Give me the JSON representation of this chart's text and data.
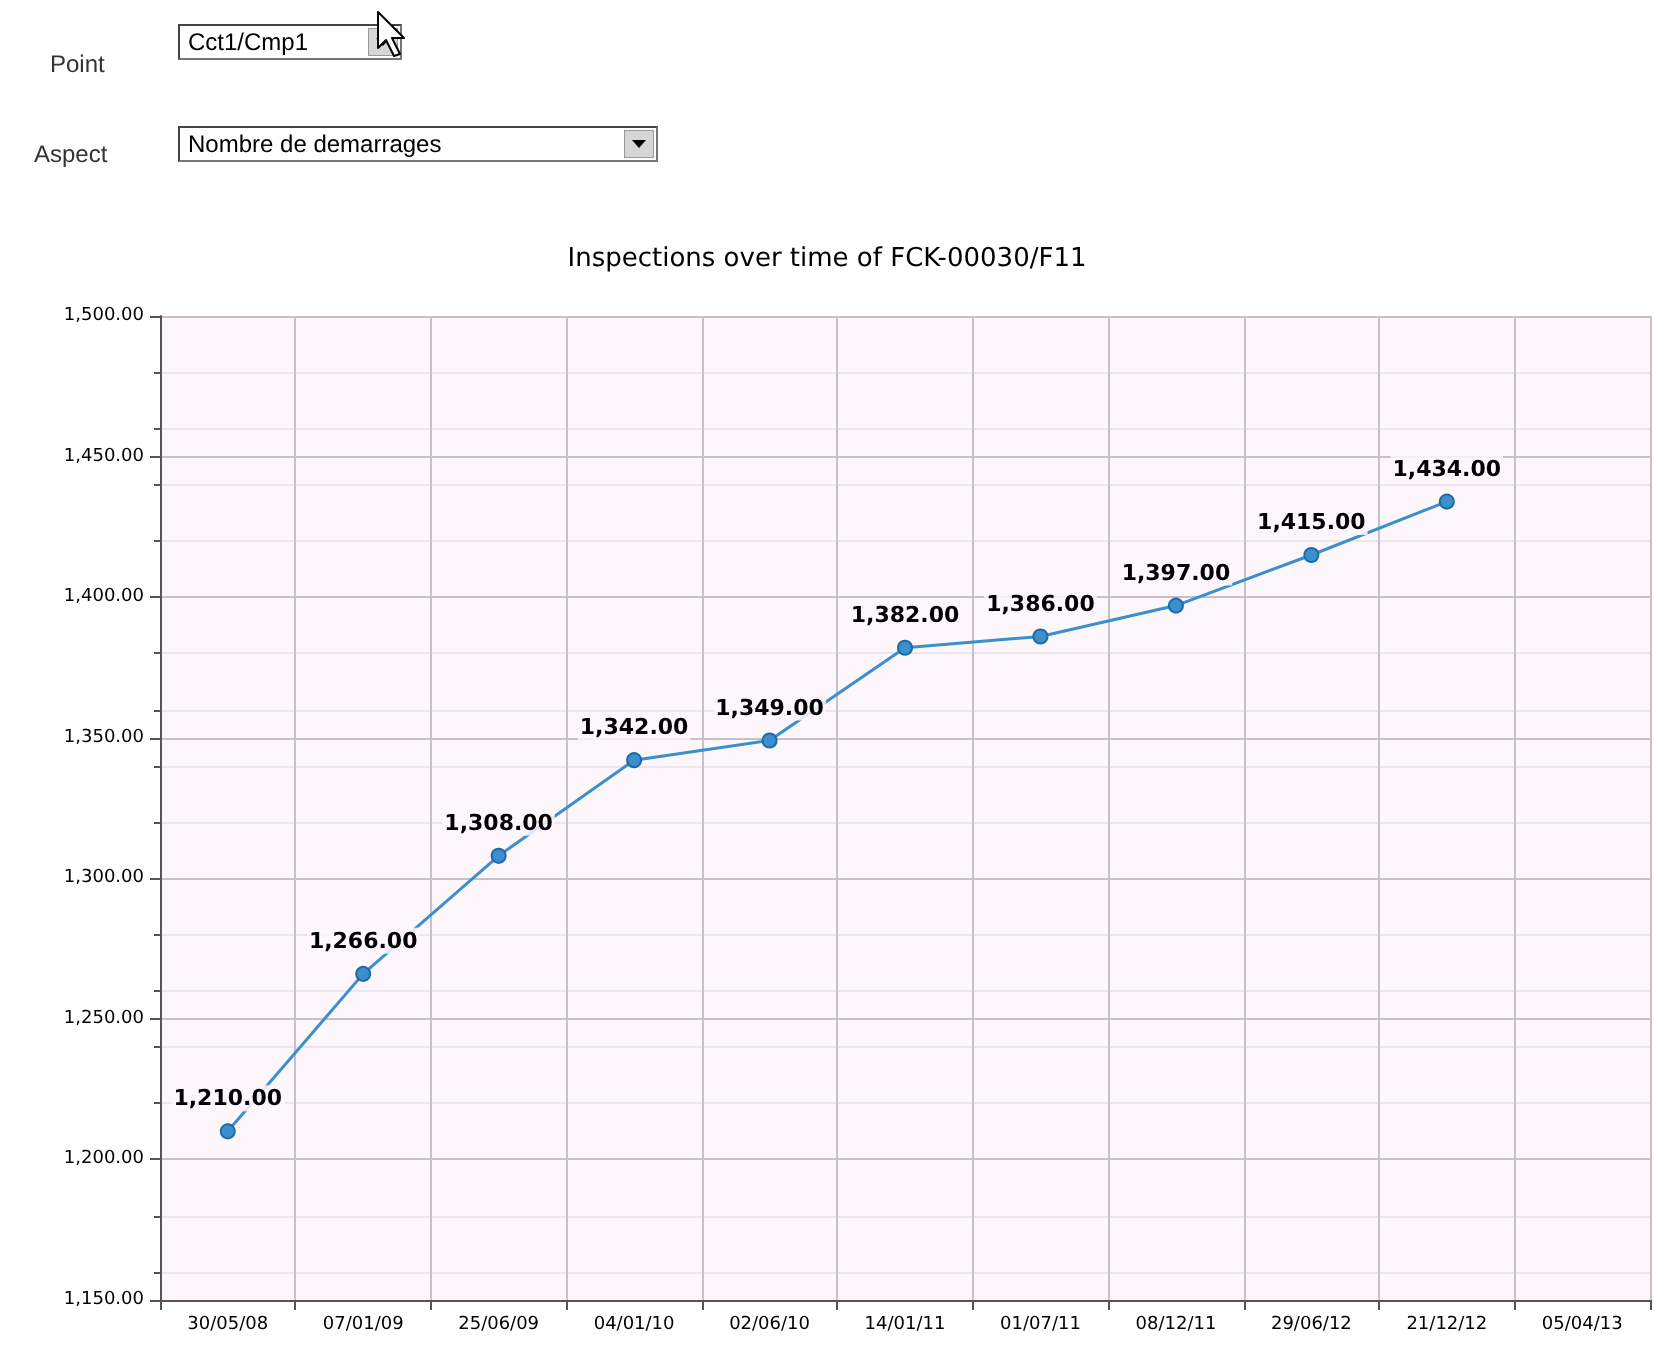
{
  "chart_data": {
    "type": "line",
    "title": "Inspections over time of FCK-00030/F11",
    "categories": [
      "30/05/08",
      "07/01/09",
      "25/06/09",
      "04/01/10",
      "02/06/10",
      "14/01/11",
      "01/07/11",
      "08/12/11",
      "29/06/12",
      "21/12/12",
      "05/04/13"
    ],
    "series": [
      {
        "color": "#3a8fcc",
        "values": [
          1210,
          1266,
          1308,
          1342,
          1349,
          1382,
          1386,
          1397,
          1415,
          1434,
          null
        ],
        "value_labels": [
          "1,210.00",
          "1,266.00",
          "1,308.00",
          "1,342.00",
          "1,349.00",
          "1,382.00",
          "1,386.00",
          "1,397.00",
          "1,415.00",
          "1,434.00",
          null
        ]
      }
    ],
    "ylim": [
      1150,
      1500
    ],
    "yticks": [
      {
        "value": 1150,
        "label": "1,150.00"
      },
      {
        "value": 1200,
        "label": "1,200.00"
      },
      {
        "value": 1250,
        "label": "1,250.00"
      },
      {
        "value": 1300,
        "label": "1,300.00"
      },
      {
        "value": 1350,
        "label": "1,350.00"
      },
      {
        "value": 1400,
        "label": "1,400.00"
      },
      {
        "value": 1450,
        "label": "1,450.00"
      },
      {
        "value": 1500,
        "label": "1,500.00"
      }
    ],
    "grid": true,
    "marker": "circle",
    "line_style": "solid",
    "annotations": [
      "Point",
      "Cct1/Cmp1",
      "Aspect",
      "Nombre de demarrages"
    ]
  }
}
